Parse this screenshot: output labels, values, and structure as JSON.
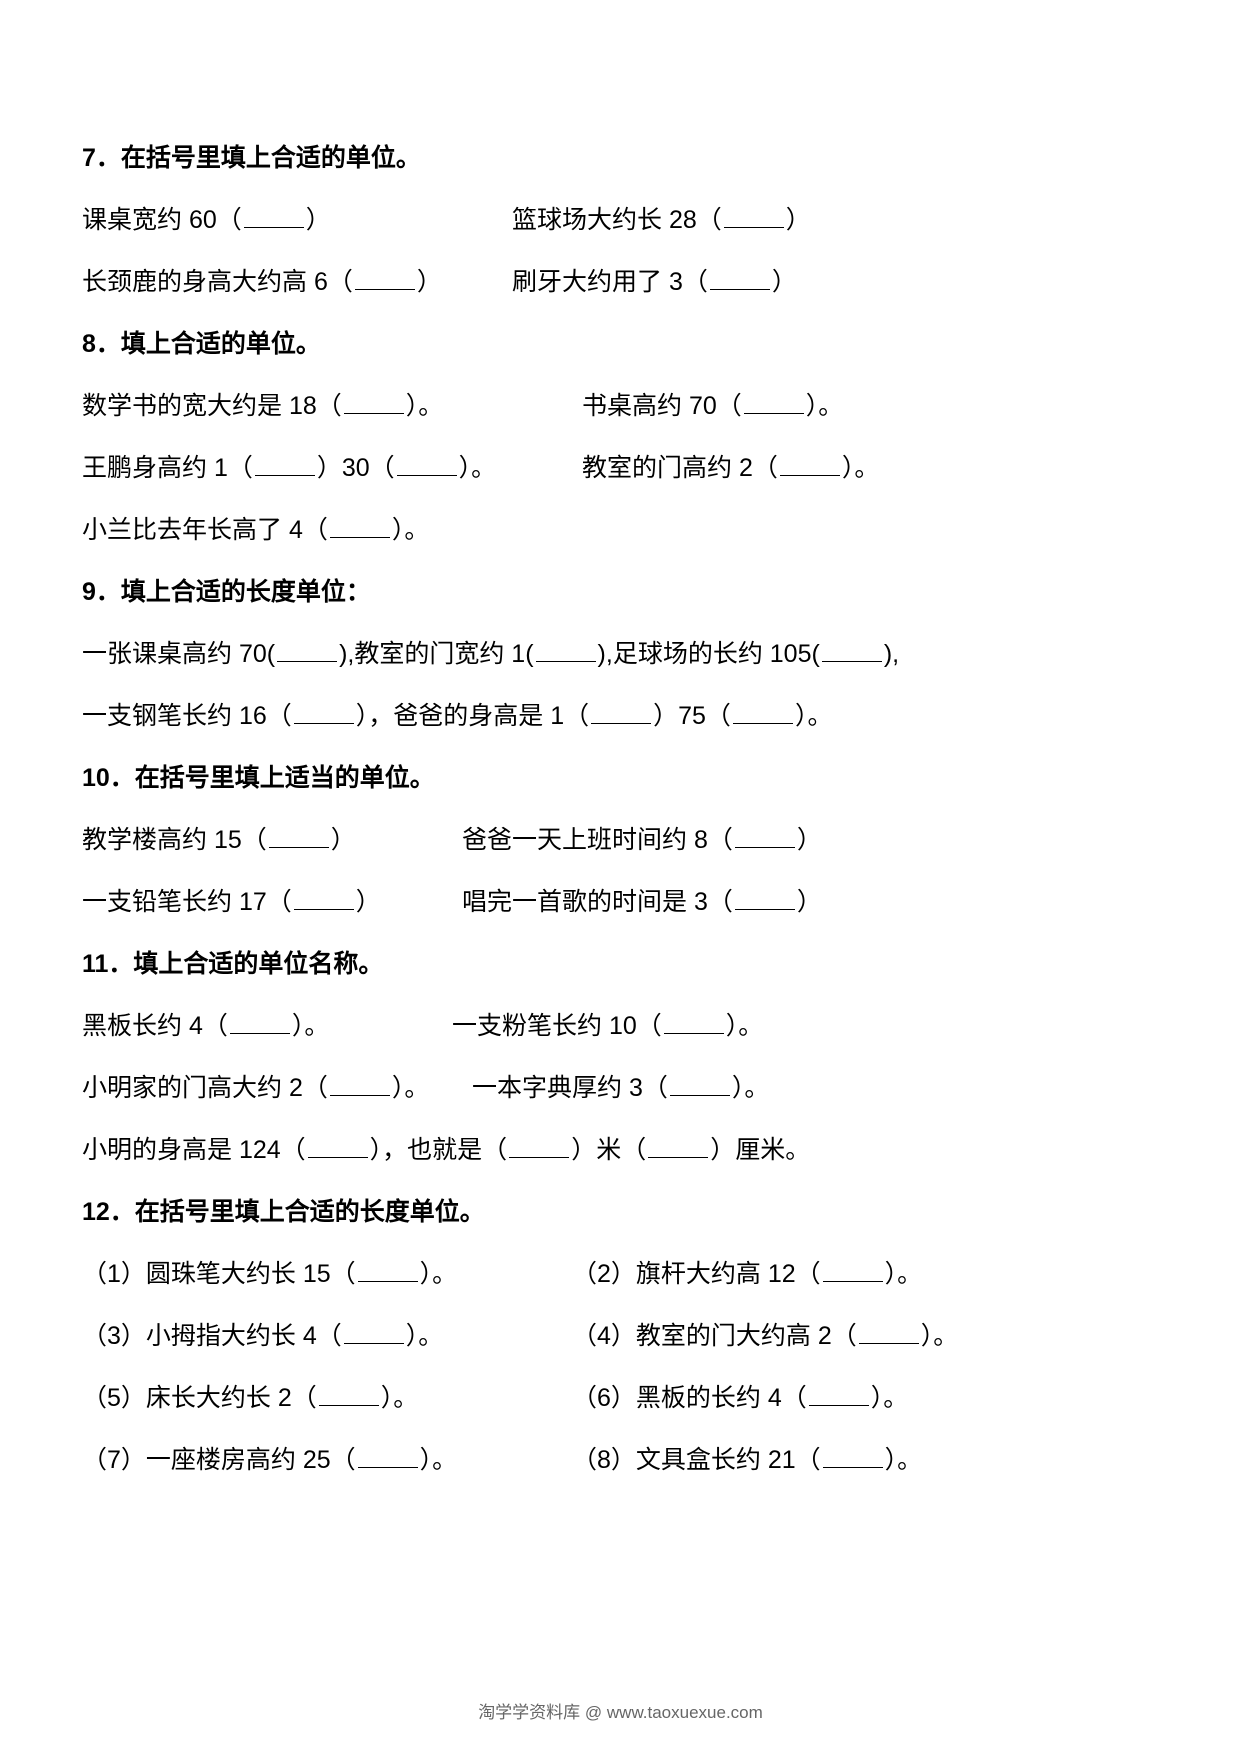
{
  "q7": {
    "title": "7．在括号里填上合适的单位。",
    "r1a": "课桌宽约 60（",
    "r1a_end": "）",
    "r1b": "篮球场大约长 28（",
    "r1b_end": "）",
    "r2a": "长颈鹿的身高大约高 6（",
    "r2a_end": "）",
    "r2b": "刷牙大约用了 3（",
    "r2b_end": "）"
  },
  "q8": {
    "title": "8．填上合适的单位。",
    "r1a": "数学书的宽大约是 18（",
    "r1a_end": "）。",
    "r1b": "书桌高约 70（",
    "r1b_end": "）。",
    "r2a1": "王鹏身高约 1（",
    "r2a2": "）30（",
    "r2a_end": "）。",
    "r2b": "教室的门高约 2（",
    "r2b_end": "）。",
    "r3": "小兰比去年长高了 4（",
    "r3_end": "）。"
  },
  "q9": {
    "title": "9．填上合适的长度单位：",
    "l1a": "一张课桌高约 70(",
    "l1b": "),教室的门宽约 1(",
    "l1c": "),足球场的长约 105(",
    "l1_end": "),",
    "l2a": "一支钢笔长约 16（",
    "l2b": "），爸爸的身高是 1（",
    "l2c": "）75（",
    "l2_end": "）。"
  },
  "q10": {
    "title": "10．在括号里填上适当的单位。",
    "r1a": "教学楼高约 15（",
    "r1a_end": "）",
    "r1b": "爸爸一天上班时间约 8（",
    "r1b_end": "）",
    "r2a": "一支铅笔长约 17（",
    "r2a_end": "）",
    "r2b": "唱完一首歌的时间是 3（",
    "r2b_end": "）"
  },
  "q11": {
    "title": "11．填上合适的单位名称。",
    "r1a": "黑板长约 4（",
    "r1a_end": "）。",
    "r1b": "一支粉笔长约 10（",
    "r1b_end": "）。",
    "r2a": "小明家的门高大约 2（",
    "r2a_end": "）。",
    "r2b": "一本字典厚约 3（",
    "r2b_end": "）。",
    "r3a": "小明的身高是 124（",
    "r3b": "），也就是（",
    "r3c": "）米（",
    "r3_end": "）厘米。"
  },
  "q12": {
    "title": "12．在括号里填上合适的长度单位。",
    "r1a": "（1）圆珠笔大约长 15（",
    "r1a_end": "）。",
    "r1b": "（2）旗杆大约高 12（",
    "r1b_end": "）。",
    "r2a": "（3）小拇指大约长 4（",
    "r2a_end": "）。",
    "r2b": "（4）教室的门大约高 2（",
    "r2b_end": "）。",
    "r3a": "（5）床长大约长 2（",
    "r3a_end": "）。",
    "r3b": "（6）黑板的长约 4（",
    "r3b_end": "）。",
    "r4a": "（7）一座楼房高约 25（",
    "r4a_end": "）。",
    "r4b": "（8）文具盒长约 21（",
    "r4b_end": "）。"
  },
  "footer": "淘学学资料库 @ www.taoxuexue.com"
}
